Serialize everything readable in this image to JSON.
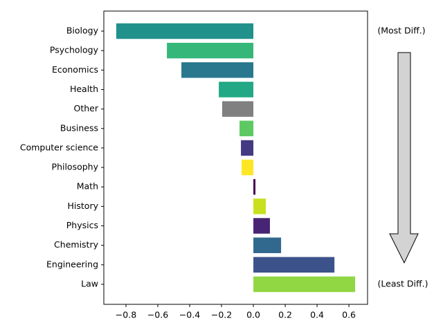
{
  "chart_data": {
    "type": "barh",
    "categories": [
      "Biology",
      "Psychology",
      "Economics",
      "Health",
      "Other",
      "Business",
      "Computer science",
      "Philosophy",
      "Math",
      "History",
      "Physics",
      "Chemistry",
      "Engineering",
      "Law"
    ],
    "values": [
      -0.861,
      -0.543,
      -0.452,
      -0.217,
      -0.196,
      -0.087,
      -0.078,
      -0.074,
      0.013,
      0.078,
      0.104,
      0.174,
      0.509,
      0.639
    ],
    "colors": [
      "#21918c",
      "#35b779",
      "#2a788e",
      "#22a884",
      "#808080",
      "#5ec962",
      "#443983",
      "#fde725",
      "#440154",
      "#c8e020",
      "#482475",
      "#31688e",
      "#3b528b",
      "#90d743"
    ],
    "xlim": [
      -0.939,
      0.717
    ],
    "xticks": [
      {
        "value": -0.8,
        "label": "−0.8"
      },
      {
        "value": -0.6,
        "label": "−0.6"
      },
      {
        "value": -0.4,
        "label": "−0.4"
      },
      {
        "value": -0.2,
        "label": "−0.2"
      },
      {
        "value": 0,
        "label": "0.0"
      },
      0.2,
      0.4,
      0.6
    ],
    "annotations": [
      "(Most Diff.)",
      "(Least Diff.)"
    ]
  }
}
